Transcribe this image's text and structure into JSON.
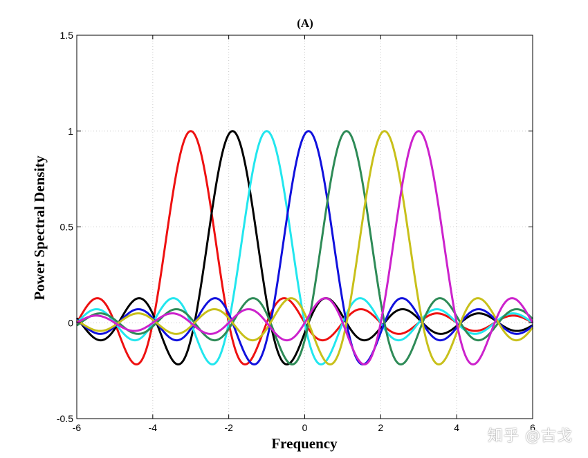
{
  "chart_data": {
    "type": "line",
    "title": "(A)",
    "xlabel": "Frequency",
    "ylabel": "Power Spectral Density",
    "xlim": [
      -6,
      6
    ],
    "ylim": [
      -0.5,
      1.5
    ],
    "xticks": [
      -6,
      -4,
      -2,
      0,
      2,
      4,
      6
    ],
    "yticks": [
      -0.5,
      0,
      0.5,
      1,
      1.5
    ],
    "ytick_labels": [
      "-0.5",
      "0",
      "0.5",
      "1",
      "1.5"
    ],
    "grid": true,
    "series": [
      {
        "center": -3.0,
        "color": "#ee1111"
      },
      {
        "center": -1.9,
        "color": "#000000"
      },
      {
        "center": -1.0,
        "color": "#22e6ee"
      },
      {
        "center": 0.1,
        "color": "#1111dd"
      },
      {
        "center": 1.1,
        "color": "#2e8b57"
      },
      {
        "center": 2.1,
        "color": "#c8c01a"
      },
      {
        "center": 3.0,
        "color": "#cc22cc"
      }
    ],
    "curve": {
      "function": "sinc",
      "main_lobe_halfwidth": 1.0,
      "peak": 1.0
    }
  },
  "watermark": "知乎 @古戈"
}
